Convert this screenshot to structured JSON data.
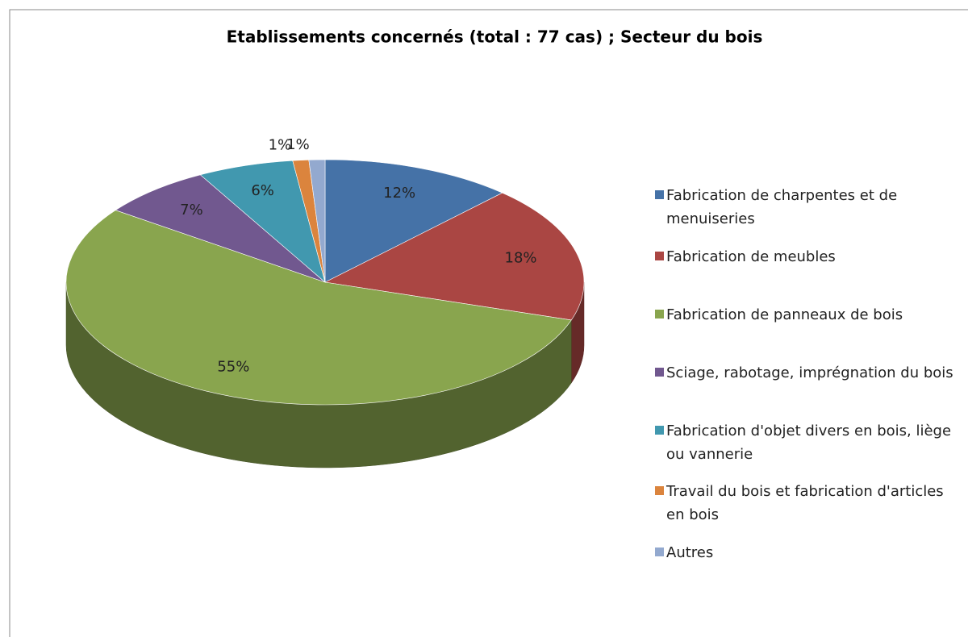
{
  "chart_data": {
    "type": "pie3d",
    "title": "Etablissements concernés (total : 77 cas) ; Secteur du bois",
    "categories": [
      "Fabrication de charpentes et de menuiseries",
      "Fabrication de meubles",
      "Fabrication de panneaux  de bois",
      "Sciage, rabotage, imprégnation du bois",
      "Fabrication d'objet divers en bois, liège ou vannerie",
      "Travail du bois et fabrication d'articles en bois",
      "Autres"
    ],
    "values": [
      12,
      18,
      55,
      7,
      6,
      1,
      1
    ],
    "value_labels": [
      "12%",
      "18%",
      "55%",
      "7%",
      "6%",
      "1%",
      "1%"
    ],
    "colors": [
      "#4572a7",
      "#aa4643",
      "#89a54e",
      "#71588f",
      "#4198af",
      "#db843d",
      "#93a9cf"
    ],
    "legend": "right"
  }
}
